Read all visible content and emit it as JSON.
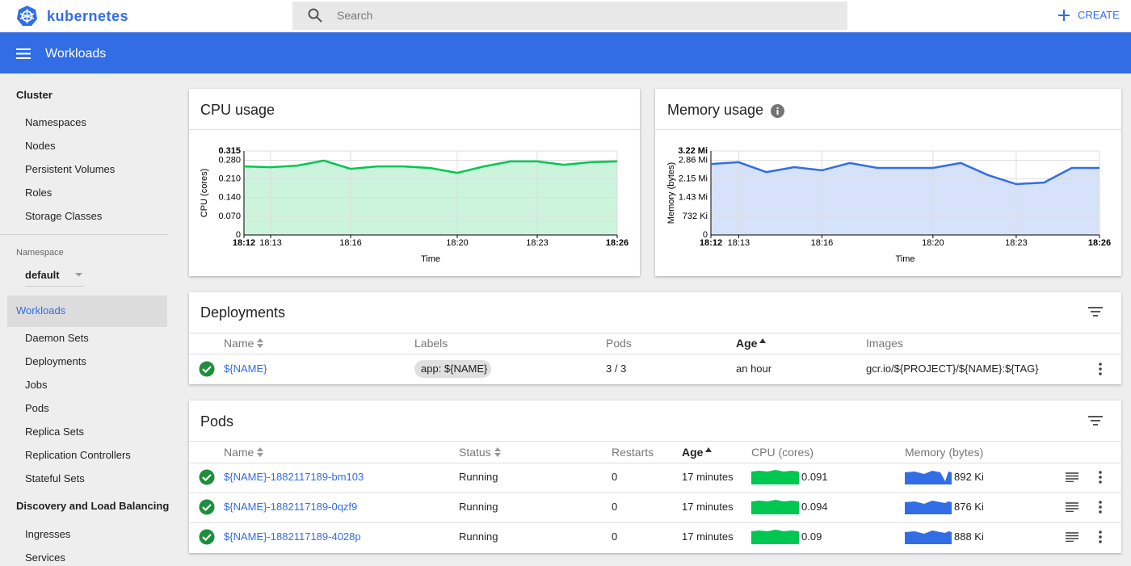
{
  "header": {
    "brand": "kubernetes",
    "search_placeholder": "Search",
    "create": "CREATE"
  },
  "toolbar": {
    "title": "Workloads"
  },
  "sidebar": {
    "cluster": {
      "heading": "Cluster",
      "items": [
        "Namespaces",
        "Nodes",
        "Persistent Volumes",
        "Roles",
        "Storage Classes"
      ]
    },
    "namespace_label": "Namespace",
    "namespace": "default",
    "workloads": {
      "heading": "Workloads",
      "items": [
        "Daemon Sets",
        "Deployments",
        "Jobs",
        "Pods",
        "Replica Sets",
        "Replication Controllers",
        "Stateful Sets"
      ]
    },
    "discovery": {
      "heading": "Discovery and Load Balancing",
      "items": [
        "Ingresses",
        "Services"
      ]
    }
  },
  "cpu_chart": {
    "type": "area",
    "title": "CPU usage",
    "x_label": "Time",
    "y_label": "CPU (cores)",
    "color": "#00c752",
    "grid": true,
    "x": [
      "18:12",
      "18:13",
      "18:14",
      "18:15",
      "18:16",
      "18:17",
      "18:18",
      "18:19",
      "18:20",
      "18:21",
      "18:22",
      "18:23",
      "18:24",
      "18:25",
      "18:26"
    ],
    "values": [
      0.257,
      0.254,
      0.26,
      0.279,
      0.248,
      0.257,
      0.257,
      0.251,
      0.233,
      0.257,
      0.276,
      0.276,
      0.263,
      0.273,
      0.276
    ],
    "xlim": [
      "18:12",
      "18:26"
    ],
    "xticks": [
      "18:12",
      "18:13",
      "18:16",
      "18:20",
      "18:23",
      "18:26"
    ],
    "ylim": [
      0,
      0.315
    ],
    "yticks": [
      0,
      {
        "value": 0.07,
        "label": "0.070"
      },
      {
        "value": 0.14,
        "label": "0.140"
      },
      {
        "value": 0.21,
        "label": "0.210"
      },
      {
        "value": 0.28,
        "label": "0.280"
      },
      0.315
    ]
  },
  "memory_chart": {
    "type": "area",
    "title": "Memory usage",
    "x_label": "Time",
    "y_label": "Memory (bytes)",
    "color": "#326de6",
    "grid": true,
    "x": [
      "18:12",
      "18:13",
      "18:14",
      "18:15",
      "18:16",
      "18:17",
      "18:18",
      "18:19",
      "18:20",
      "18:21",
      "18:22",
      "18:23",
      "18:24",
      "18:25",
      "18:26"
    ],
    "values": [
      2.72,
      2.79,
      2.41,
      2.6,
      2.48,
      2.76,
      2.57,
      2.57,
      2.57,
      2.76,
      2.29,
      1.95,
      2.01,
      2.57,
      2.57
    ],
    "xlim": [
      "18:12",
      "18:26"
    ],
    "xticks": [
      "18:12",
      "18:13",
      "18:16",
      "18:20",
      "18:23",
      "18:26"
    ],
    "ylim": [
      0,
      3.22
    ],
    "yticks": [
      0,
      {
        "value": 0.715,
        "label": "732 Ki"
      },
      {
        "value": 1.43,
        "label": "1.43 Mi"
      },
      {
        "value": 2.15,
        "label": "2.15 Mi"
      },
      {
        "value": 2.86,
        "label": "2.86 Mi"
      },
      {
        "value": 3.22,
        "label": "3.22 Mi"
      }
    ]
  },
  "deployments": {
    "title": "Deployments",
    "columns": [
      "Name",
      "Labels",
      "Pods",
      "Age",
      "Images"
    ],
    "rows": [
      {
        "name": "${NAME}",
        "labels": "app: ${NAME}",
        "pods": "3 / 3",
        "age": "an hour",
        "images": "gcr.io/${PROJECT}/${NAME}:${TAG}"
      }
    ]
  },
  "pods": {
    "title": "Pods",
    "columns": [
      "Name",
      "Status",
      "Restarts",
      "Age",
      "CPU (cores)",
      "Memory (bytes)"
    ],
    "rows": [
      {
        "name": "${NAME}-1882117189-bm103",
        "status": "Running",
        "restarts": 0,
        "age": "17 minutes",
        "cpu": 0.091,
        "memory": "892 Ki"
      },
      {
        "name": "${NAME}-1882117189-0qzf9",
        "status": "Running",
        "restarts": 0,
        "age": "17 minutes",
        "cpu": 0.094,
        "memory": "876 Ki"
      },
      {
        "name": "${NAME}-1882117189-4028p",
        "status": "Running",
        "restarts": 0,
        "age": "17 minutes",
        "cpu": 0.09,
        "memory": "888 Ki"
      }
    ]
  }
}
